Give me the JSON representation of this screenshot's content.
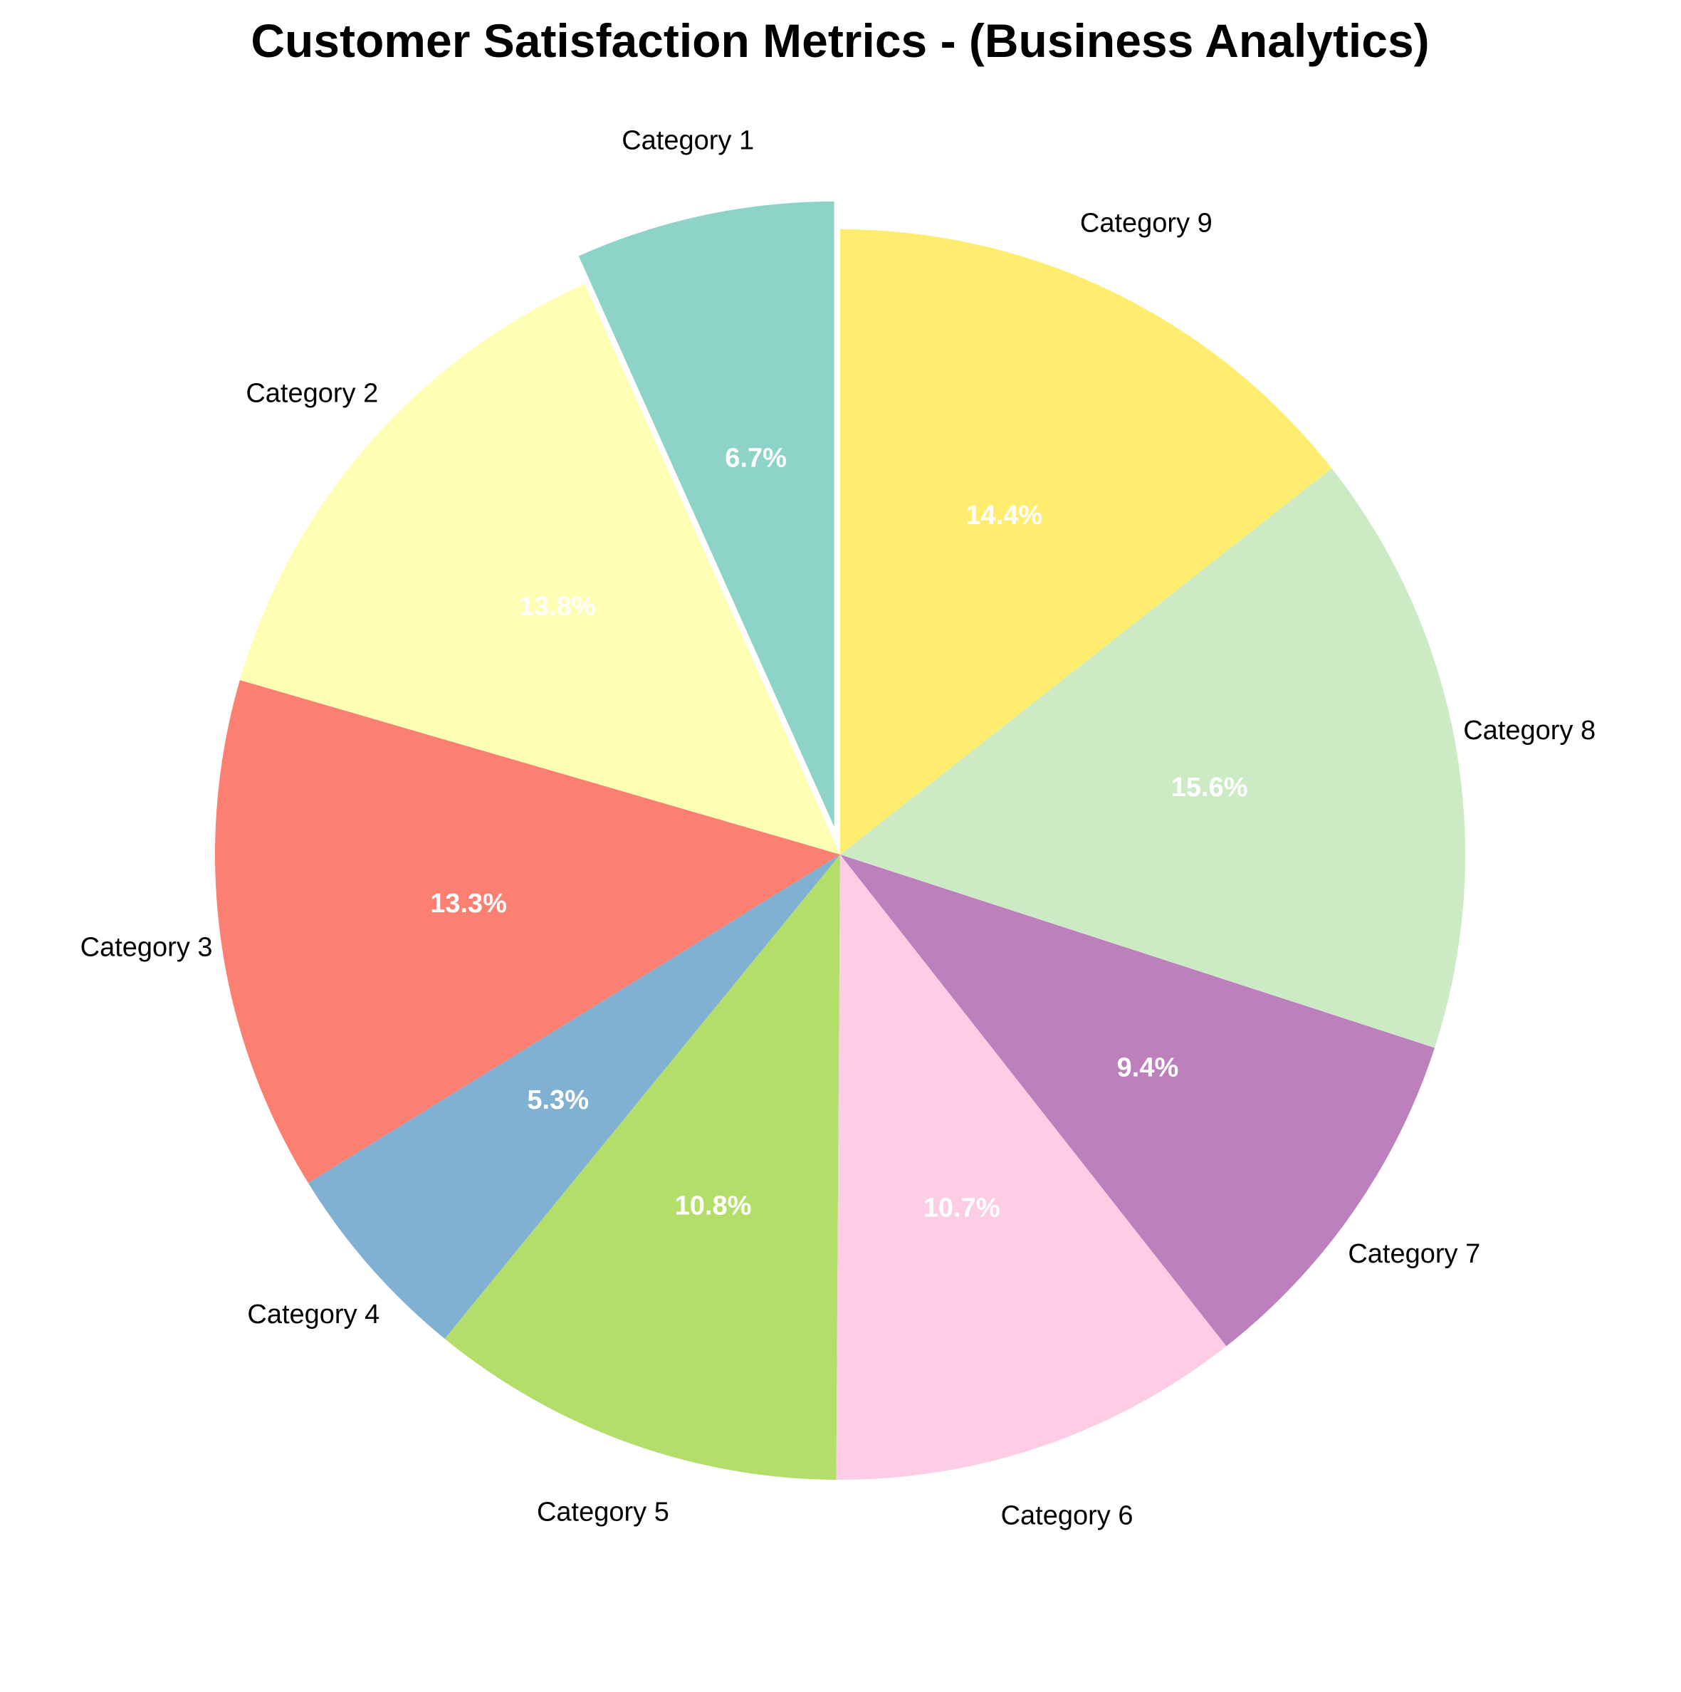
{
  "chart_data": {
    "type": "pie",
    "title": "Customer Satisfaction Metrics - (Business Analytics)",
    "categories": [
      "Category 1",
      "Category 2",
      "Category 3",
      "Category 4",
      "Category 5",
      "Category 6",
      "Category 7",
      "Category 8",
      "Category 9"
    ],
    "values": [
      6.7,
      13.8,
      13.3,
      5.3,
      10.8,
      10.7,
      9.4,
      15.6,
      14.4
    ],
    "percent_labels": [
      "6.7%",
      "13.8%",
      "13.3%",
      "5.3%",
      "10.8%",
      "10.7%",
      "9.4%",
      "15.6%",
      "14.4%"
    ],
    "colors": [
      "#8dd3c7",
      "#ffffb3",
      "#fb8072",
      "#80b1d3",
      "#b3de69",
      "#fccde5",
      "#bc80bd",
      "#ccebc5",
      "#ffed6f"
    ],
    "start": "top",
    "direction": "counterclockwise",
    "exploded": [
      "Category 1"
    ],
    "legend": "none"
  }
}
